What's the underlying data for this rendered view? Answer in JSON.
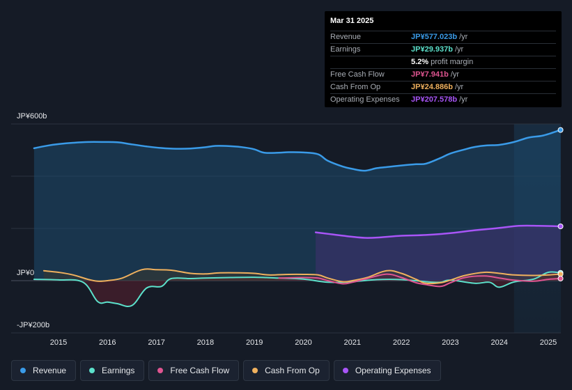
{
  "chart_data": {
    "type": "area",
    "unit_prefix": "JP¥",
    "y_labels": [
      {
        "label": "JP¥600b",
        "value": 600
      },
      {
        "label": "JP¥0",
        "value": 0
      },
      {
        "label": "-JP¥200b",
        "value": -200
      }
    ],
    "ylim": [
      -200,
      600
    ],
    "x_ticks": [
      "2015",
      "2016",
      "2017",
      "2018",
      "2019",
      "2020",
      "2021",
      "2022",
      "2023",
      "2024",
      "2025"
    ],
    "xlim": [
      2014.0,
      2025.3
    ],
    "forecast_start": 2024.3,
    "series": [
      {
        "name": "Revenue",
        "color": "#3a9be8",
        "x": [
          2014.5,
          2014.8,
          2015.0,
          2015.3,
          2015.6,
          2015.9,
          2016.2,
          2016.5,
          2016.8,
          2017.1,
          2017.4,
          2017.7,
          2018.0,
          2018.2,
          2018.5,
          2018.8,
          2019.0,
          2019.2,
          2019.5,
          2019.7,
          2020.0,
          2020.3,
          2020.5,
          2020.8,
          2021.0,
          2021.25,
          2021.5,
          2021.75,
          2022.0,
          2022.3,
          2022.5,
          2022.8,
          2023.0,
          2023.3,
          2023.5,
          2023.75,
          2024.0,
          2024.3,
          2024.6,
          2024.9,
          2025.25
        ],
        "values": [
          507,
          518,
          523,
          528,
          531,
          531,
          530,
          522,
          514,
          508,
          505,
          506,
          511,
          516,
          515,
          510,
          503,
          490,
          490,
          492,
          491,
          484,
          459,
          437,
          428,
          421,
          431,
          436,
          441,
          446,
          448,
          470,
          487,
          503,
          512,
          518,
          520,
          531,
          548,
          556,
          577
        ]
      },
      {
        "name": "Earnings",
        "color": "#5ce1cb",
        "x": [
          2014.5,
          2015.0,
          2015.5,
          2015.8,
          2016.0,
          2016.2,
          2016.5,
          2016.8,
          2017.1,
          2017.3,
          2017.7,
          2018.0,
          2018.5,
          2019.0,
          2019.5,
          2020.0,
          2020.5,
          2021.0,
          2021.5,
          2022.0,
          2022.5,
          2022.8,
          2023.0,
          2023.5,
          2023.8,
          2024.0,
          2024.3,
          2024.7,
          2025.0,
          2025.25
        ],
        "values": [
          5,
          3,
          -6,
          -80,
          -82,
          -88,
          -95,
          -28,
          -22,
          8,
          8,
          10,
          12,
          13,
          10,
          6,
          -6,
          -4,
          4,
          4,
          -4,
          -6,
          2,
          -10,
          -6,
          -25,
          -5,
          6,
          32,
          30
        ]
      },
      {
        "name": "Free Cash Flow",
        "color": "#e05591",
        "x": [
          2019.5,
          2020.0,
          2020.3,
          2020.5,
          2020.8,
          2021.0,
          2021.3,
          2021.7,
          2022.0,
          2022.3,
          2022.5,
          2022.8,
          2023.0,
          2023.3,
          2023.7,
          2024.0,
          2024.3,
          2024.7,
          2025.0,
          2025.25
        ],
        "values": [
          10,
          12,
          10,
          0,
          -12,
          -6,
          8,
          25,
          12,
          -8,
          -15,
          -22,
          -8,
          12,
          18,
          10,
          2,
          -2,
          5,
          8
        ]
      },
      {
        "name": "Cash From Op",
        "color": "#f0b15e",
        "x": [
          2014.7,
          2015.0,
          2015.3,
          2015.6,
          2015.8,
          2016.0,
          2016.3,
          2016.7,
          2017.0,
          2017.3,
          2017.7,
          2018.0,
          2018.3,
          2018.7,
          2019.0,
          2019.3,
          2019.7,
          2020.0,
          2020.3,
          2020.5,
          2020.8,
          2021.0,
          2021.3,
          2021.7,
          2022.0,
          2022.3,
          2022.5,
          2022.8,
          2023.0,
          2023.3,
          2023.7,
          2024.0,
          2024.3,
          2024.7,
          2025.0,
          2025.25
        ],
        "values": [
          38,
          32,
          22,
          5,
          -2,
          0,
          10,
          42,
          42,
          40,
          28,
          26,
          30,
          30,
          28,
          22,
          24,
          24,
          22,
          10,
          -4,
          0,
          12,
          38,
          28,
          5,
          -10,
          -8,
          2,
          20,
          32,
          28,
          22,
          20,
          22,
          25
        ]
      },
      {
        "name": "Operating Expenses",
        "color": "#a855f7",
        "x": [
          2020.25,
          2020.6,
          2021.0,
          2021.25,
          2021.5,
          2022.0,
          2022.5,
          2023.0,
          2023.5,
          2024.0,
          2024.4,
          2024.8,
          2025.25
        ],
        "values": [
          185,
          177,
          168,
          164,
          165,
          172,
          175,
          182,
          193,
          202,
          210,
          210,
          208
        ]
      }
    ]
  },
  "tooltip": {
    "date": "Mar 31 2025",
    "rows": [
      {
        "label": "Revenue",
        "value": "JP¥577.023b",
        "unit": "/yr",
        "color": "#3a9be8"
      },
      {
        "label": "Earnings",
        "value": "JP¥29.937b",
        "unit": "/yr",
        "color": "#5ce1cb"
      },
      {
        "label": "",
        "value": "5.2%",
        "unit": "profit margin",
        "color": "#ffffff"
      },
      {
        "label": "Free Cash Flow",
        "value": "JP¥7.941b",
        "unit": "/yr",
        "color": "#e05591"
      },
      {
        "label": "Cash From Op",
        "value": "JP¥24.886b",
        "unit": "/yr",
        "color": "#f0b15e"
      },
      {
        "label": "Operating Expenses",
        "value": "JP¥207.578b",
        "unit": "/yr",
        "color": "#a855f7"
      }
    ]
  },
  "legend": [
    {
      "label": "Revenue",
      "color": "#3a9be8"
    },
    {
      "label": "Earnings",
      "color": "#5ce1cb"
    },
    {
      "label": "Free Cash Flow",
      "color": "#e05591"
    },
    {
      "label": "Cash From Op",
      "color": "#f0b15e"
    },
    {
      "label": "Operating Expenses",
      "color": "#a855f7"
    }
  ]
}
